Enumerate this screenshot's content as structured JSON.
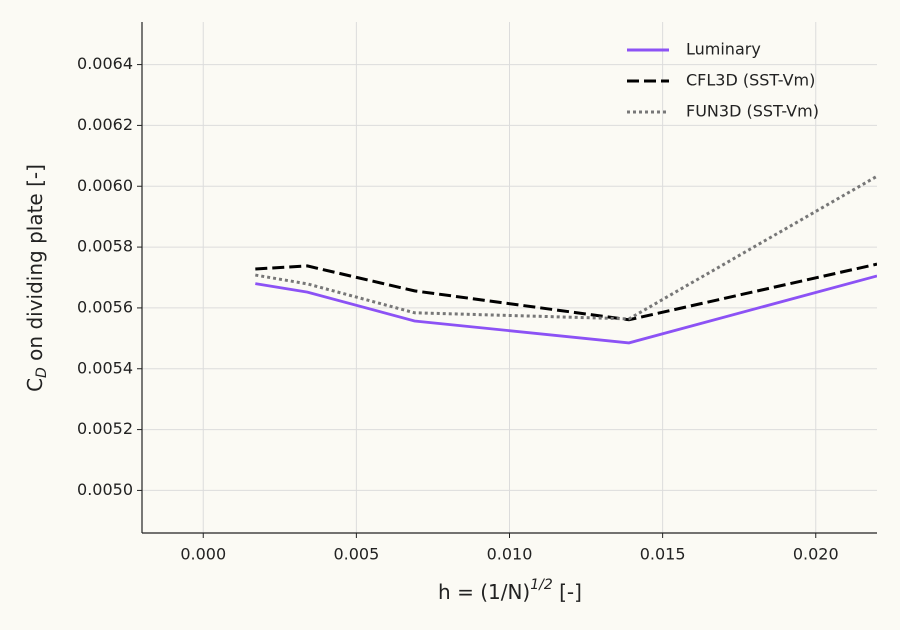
{
  "chart_data": {
    "type": "line",
    "xlabel": {
      "before": "h = (1/N)",
      "sup": "1/2",
      "after": " [-]"
    },
    "ylabel": {
      "base": "C",
      "sub": "D",
      "after": " on dividing plate [-]"
    },
    "x": [
      0.0017,
      0.0034,
      0.0069,
      0.0139,
      0.022
    ],
    "series": [
      {
        "name": "Luminary",
        "color": "#8c52f5",
        "style": "solid",
        "values": [
          0.00568,
          0.005652,
          0.005557,
          0.005485,
          0.005705
        ]
      },
      {
        "name": "CFL3D (SST-Vm)",
        "color": "#000000",
        "style": "dashed",
        "values": [
          0.005728,
          0.005738,
          0.005656,
          0.005561,
          0.005744
        ]
      },
      {
        "name": "FUN3D (SST-Vm)",
        "color": "#777777",
        "style": "dotted",
        "values": [
          0.005708,
          0.005679,
          0.005584,
          0.005564,
          0.006033
        ]
      }
    ],
    "xlim": [
      -0.002,
      0.022
    ],
    "xticks": [
      {
        "value": 0,
        "label": "0.000"
      },
      0.005,
      {
        "value": 0.01,
        "label": "0.010"
      },
      0.015,
      {
        "value": 0.02,
        "label": "0.020"
      }
    ],
    "ylim": [
      0.00486,
      0.00654
    ],
    "yticks": [
      {
        "value": 0.005,
        "label": "0.0050"
      },
      0.0052,
      0.0054,
      0.0056,
      0.0058,
      {
        "value": 0.006,
        "label": "0.0060"
      },
      0.0062,
      0.0064
    ],
    "grid": true,
    "legend": "upper right"
  }
}
